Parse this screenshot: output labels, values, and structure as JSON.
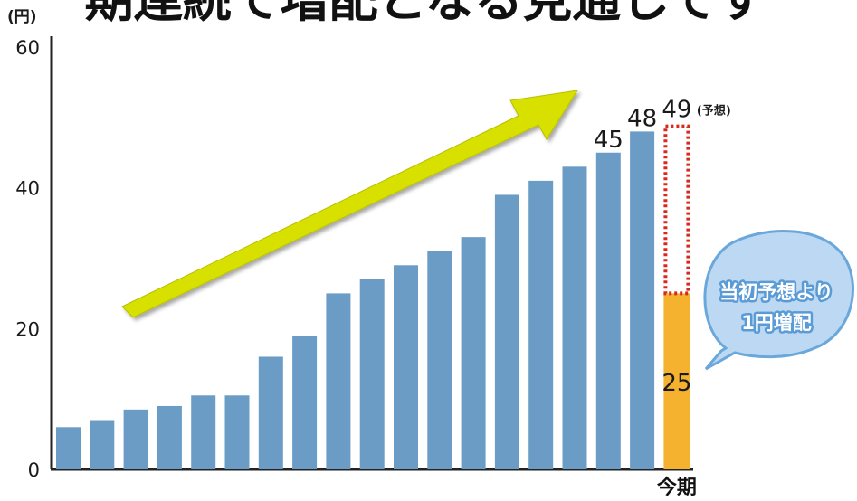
{
  "chart_data": {
    "type": "bar",
    "title": "期連続で増配となる見通しです",
    "y_unit": "(円)",
    "ylim": [
      0,
      60
    ],
    "yticks": [
      0,
      20,
      40,
      60
    ],
    "grid": false,
    "legend": "none",
    "current_period_label": "今期",
    "values": [
      6,
      7,
      8.5,
      9,
      10.5,
      10.5,
      16,
      19,
      25,
      27,
      29,
      31,
      33,
      39,
      41,
      43,
      45,
      48
    ],
    "value_labels": {
      "16": "45",
      "17": "48"
    },
    "current": {
      "base_value": 25,
      "forecast_value": 49,
      "base_label": "25",
      "forecast_label": "49",
      "forecast_note": "(予想)"
    },
    "callout": [
      "当初予想より",
      "1円増配"
    ],
    "colors": {
      "bar": "#6a9cc6",
      "current_bar": "#f4b22e",
      "forecast_outline": "#d9281e",
      "arrow": "#d8e000",
      "bubble_fill": "#bcd8f2",
      "bubble_stroke": "#6aa8dc"
    }
  }
}
